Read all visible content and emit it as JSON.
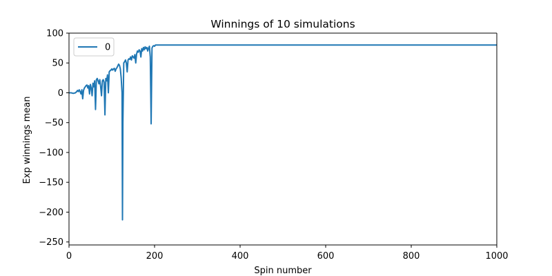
{
  "chart_data": {
    "type": "line",
    "title": "Winnings of 10 simulations",
    "xlabel": "Spin number",
    "ylabel": "Exp winnings mean",
    "xlim": [
      0,
      1000
    ],
    "ylim": [
      -255,
      100
    ],
    "xticks": [
      0,
      200,
      400,
      600,
      800,
      1000
    ],
    "yticks": [
      -250,
      -200,
      -150,
      -100,
      -50,
      0,
      50,
      100
    ],
    "xtick_labels": [
      "0",
      "200",
      "400",
      "600",
      "800",
      "1000"
    ],
    "ytick_labels": [
      "−250",
      "−200",
      "−150",
      "−100",
      "−50",
      "0",
      "50",
      "100"
    ],
    "grid": false,
    "legend_position": "top-left",
    "series": [
      {
        "name": "0",
        "color": "#1f77b4",
        "points": [
          [
            0,
            0
          ],
          [
            5,
            0
          ],
          [
            10,
            -1
          ],
          [
            15,
            0
          ],
          [
            18,
            2
          ],
          [
            20,
            4
          ],
          [
            22,
            2
          ],
          [
            24,
            5
          ],
          [
            26,
            2
          ],
          [
            28,
            -2
          ],
          [
            30,
            5
          ],
          [
            32,
            -10
          ],
          [
            34,
            4
          ],
          [
            36,
            8
          ],
          [
            38,
            10
          ],
          [
            40,
            12
          ],
          [
            42,
            13
          ],
          [
            44,
            8
          ],
          [
            46,
            12
          ],
          [
            48,
            -2
          ],
          [
            50,
            14
          ],
          [
            52,
            8
          ],
          [
            54,
            -5
          ],
          [
            56,
            16
          ],
          [
            58,
            10
          ],
          [
            60,
            20
          ],
          [
            62,
            -28
          ],
          [
            64,
            22
          ],
          [
            66,
            24
          ],
          [
            68,
            20
          ],
          [
            70,
            15
          ],
          [
            72,
            22
          ],
          [
            74,
            10
          ],
          [
            76,
            -5
          ],
          [
            78,
            20
          ],
          [
            80,
            22
          ],
          [
            82,
            18
          ],
          [
            84,
            -37
          ],
          [
            86,
            24
          ],
          [
            88,
            20
          ],
          [
            90,
            30
          ],
          [
            92,
            0
          ],
          [
            94,
            35
          ],
          [
            96,
            37
          ],
          [
            98,
            38
          ],
          [
            100,
            40
          ],
          [
            102,
            38
          ],
          [
            104,
            40
          ],
          [
            106,
            41
          ],
          [
            108,
            36
          ],
          [
            110,
            40
          ],
          [
            112,
            42
          ],
          [
            114,
            45
          ],
          [
            116,
            48
          ],
          [
            118,
            46
          ],
          [
            120,
            40
          ],
          [
            122,
            25
          ],
          [
            124,
            0
          ],
          [
            125,
            -213
          ],
          [
            126,
            -50
          ],
          [
            128,
            50
          ],
          [
            130,
            52
          ],
          [
            132,
            55
          ],
          [
            134,
            50
          ],
          [
            136,
            35
          ],
          [
            138,
            55
          ],
          [
            140,
            57
          ],
          [
            142,
            56
          ],
          [
            144,
            60
          ],
          [
            146,
            55
          ],
          [
            148,
            62
          ],
          [
            150,
            60
          ],
          [
            152,
            58
          ],
          [
            154,
            64
          ],
          [
            156,
            50
          ],
          [
            158,
            65
          ],
          [
            160,
            70
          ],
          [
            162,
            68
          ],
          [
            164,
            72
          ],
          [
            166,
            70
          ],
          [
            168,
            60
          ],
          [
            170,
            74
          ],
          [
            172,
            70
          ],
          [
            174,
            76
          ],
          [
            176,
            72
          ],
          [
            178,
            77
          ],
          [
            180,
            74
          ],
          [
            182,
            76
          ],
          [
            184,
            70
          ],
          [
            186,
            75
          ],
          [
            188,
            78
          ],
          [
            190,
            60
          ],
          [
            192,
            -52
          ],
          [
            194,
            75
          ],
          [
            196,
            78
          ],
          [
            198,
            79
          ],
          [
            200,
            78
          ],
          [
            202,
            80
          ],
          [
            204,
            80
          ],
          [
            1000,
            80
          ]
        ]
      }
    ]
  }
}
